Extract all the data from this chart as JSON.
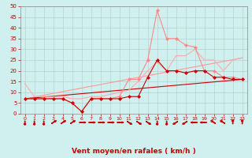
{
  "background_color": "#cff0ee",
  "grid_color": "#b0c8c8",
  "xlabel": "Vent moyen/en rafales ( km/h )",
  "xlabel_color": "#cc0000",
  "ylabel_color": "#cc0000",
  "tick_color": "#cc0000",
  "yticks": [
    0,
    5,
    10,
    15,
    20,
    25,
    30,
    35,
    40,
    45,
    50
  ],
  "xticks": [
    0,
    1,
    2,
    3,
    4,
    5,
    6,
    7,
    8,
    9,
    10,
    11,
    12,
    13,
    14,
    15,
    16,
    17,
    18,
    19,
    20,
    21,
    22,
    23
  ],
  "xlim": [
    -0.5,
    23.5
  ],
  "ylim": [
    0,
    50
  ],
  "series": [
    {
      "x": [
        0,
        1,
        2,
        3,
        4,
        5,
        6,
        7,
        8,
        9,
        10,
        11,
        12,
        13,
        14,
        15,
        16,
        17,
        18,
        19,
        20,
        21,
        22,
        23
      ],
      "y": [
        7,
        7,
        7,
        7,
        7,
        5,
        1,
        7,
        7,
        7,
        7,
        8,
        8,
        17,
        25,
        20,
        20,
        19,
        20,
        20,
        17,
        17,
        16,
        16
      ],
      "color": "#cc0000",
      "linewidth": 0.8,
      "marker": "D",
      "markersize": 2.0,
      "zorder": 5
    },
    {
      "x": [
        0,
        1,
        2,
        3,
        4,
        5,
        6,
        7,
        8,
        9,
        10,
        11,
        12,
        13,
        14,
        15,
        16,
        17,
        18,
        19,
        20,
        21,
        22,
        23
      ],
      "y": [
        7,
        7,
        7,
        7,
        7,
        5,
        1,
        7,
        7,
        7,
        8,
        16,
        16,
        25,
        48,
        35,
        35,
        32,
        31,
        20,
        20,
        17,
        17,
        16
      ],
      "color": "#ff8888",
      "linewidth": 0.8,
      "marker": "D",
      "markersize": 2.0,
      "zorder": 4
    },
    {
      "x": [
        0,
        1,
        2,
        3,
        4,
        5,
        6,
        7,
        8,
        9,
        10,
        11,
        12,
        13,
        14,
        15,
        16,
        17,
        18,
        19,
        20,
        21,
        22,
        23
      ],
      "y": [
        14,
        8,
        8,
        8,
        8,
        7,
        7,
        8,
        8,
        9,
        10,
        11,
        15,
        20,
        24,
        20,
        27,
        27,
        30,
        25,
        25,
        20,
        25,
        26
      ],
      "color": "#ffaaaa",
      "linewidth": 0.8,
      "marker": null,
      "markersize": 0,
      "zorder": 3
    },
    {
      "x": [
        0,
        23
      ],
      "y": [
        7,
        26
      ],
      "color": "#ff9999",
      "linewidth": 0.8,
      "marker": null,
      "markersize": 0,
      "zorder": 2
    },
    {
      "x": [
        0,
        23
      ],
      "y": [
        7,
        16
      ],
      "color": "#cc0000",
      "linewidth": 0.8,
      "marker": null,
      "markersize": 0,
      "zorder": 2
    }
  ],
  "wind_arrows": {
    "color": "#cc0000",
    "x": [
      0,
      1,
      2,
      3,
      4,
      5,
      6,
      7,
      8,
      9,
      10,
      11,
      12,
      13,
      14,
      15,
      16,
      17,
      18,
      19,
      20,
      21,
      22,
      23
    ],
    "directions_deg": [
      180,
      180,
      180,
      45,
      45,
      45,
      90,
      90,
      90,
      90,
      90,
      135,
      135,
      135,
      180,
      180,
      225,
      225,
      270,
      270,
      315,
      315,
      0,
      0
    ]
  }
}
